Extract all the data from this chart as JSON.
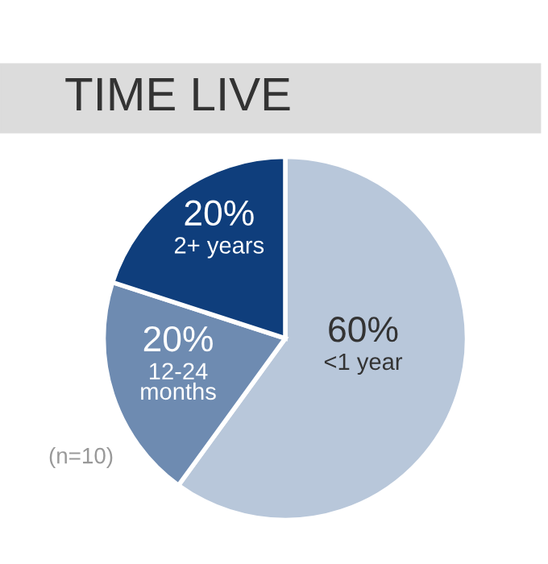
{
  "chart_data": {
    "type": "pie",
    "title": "TIME LIVE",
    "categories": [
      "<1 year",
      "12-24\nmonths",
      "2+ years"
    ],
    "values": [
      60,
      20,
      20
    ],
    "colors": [
      "#b8c7da",
      "#6e8bb1",
      "#0f3e7c"
    ],
    "value_labels": [
      "60%",
      "20%",
      "20%"
    ],
    "legend": false,
    "annotations": [
      "(n=10)"
    ]
  }
}
